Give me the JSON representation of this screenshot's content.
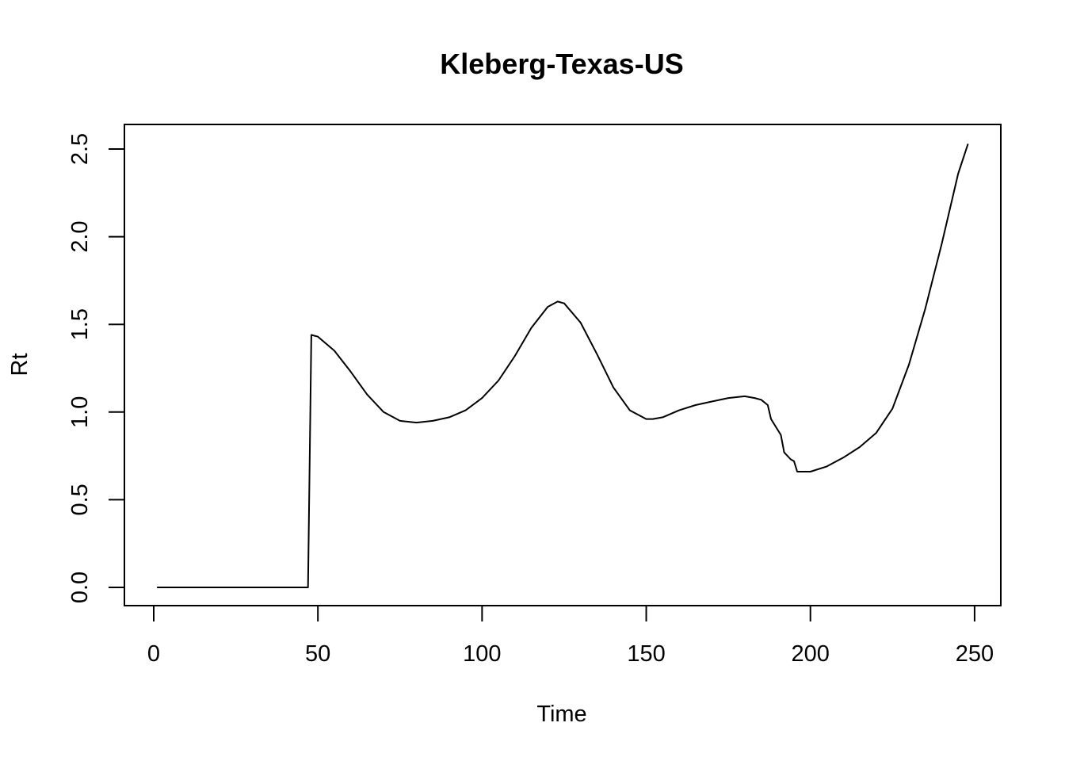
{
  "chart_data": {
    "type": "line",
    "title": "Kleberg-Texas-US",
    "xlabel": "Time",
    "ylabel": "Rt",
    "xlim": [
      1,
      248
    ],
    "ylim": [
      0,
      2.5
    ],
    "x_ticks": [
      0,
      50,
      100,
      150,
      200,
      250
    ],
    "y_ticks": [
      0.0,
      0.5,
      1.0,
      1.5,
      2.0,
      2.5
    ],
    "x_tick_labels": [
      "0",
      "50",
      "100",
      "150",
      "200",
      "250"
    ],
    "y_tick_labels": [
      "0.0",
      "0.5",
      "1.0",
      "1.5",
      "2.0",
      "2.5"
    ],
    "grid": false,
    "legend": "none",
    "series": [
      {
        "color": "#000000",
        "x": [
          1,
          10,
          20,
          30,
          40,
          47,
          48,
          50,
          55,
          60,
          65,
          70,
          75,
          80,
          85,
          90,
          95,
          100,
          105,
          110,
          115,
          120,
          123,
          125,
          130,
          135,
          140,
          145,
          150,
          152,
          155,
          160,
          165,
          170,
          175,
          180,
          183,
          185,
          187,
          188,
          191,
          192,
          194,
          195,
          196,
          200,
          205,
          210,
          215,
          220,
          225,
          230,
          235,
          240,
          245,
          248
        ],
        "y": [
          0,
          0,
          0,
          0,
          0,
          0,
          1.44,
          1.43,
          1.35,
          1.23,
          1.1,
          1.0,
          0.95,
          0.94,
          0.95,
          0.97,
          1.01,
          1.08,
          1.18,
          1.32,
          1.48,
          1.6,
          1.63,
          1.62,
          1.51,
          1.33,
          1.14,
          1.01,
          0.96,
          0.96,
          0.97,
          1.01,
          1.04,
          1.06,
          1.08,
          1.09,
          1.08,
          1.07,
          1.04,
          0.96,
          0.87,
          0.77,
          0.73,
          0.72,
          0.66,
          0.66,
          0.69,
          0.74,
          0.8,
          0.88,
          1.02,
          1.27,
          1.59,
          1.96,
          2.36,
          2.53
        ]
      }
    ]
  }
}
